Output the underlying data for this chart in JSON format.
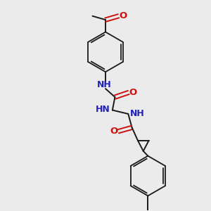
{
  "background_color": "#ebebeb",
  "bond_color": "#1a1a1a",
  "N_color": "#2222bb",
  "O_color": "#cc1111",
  "figsize": [
    3.0,
    3.0
  ],
  "dpi": 100,
  "xlim": [
    0,
    10
  ],
  "ylim": [
    0,
    10
  ]
}
